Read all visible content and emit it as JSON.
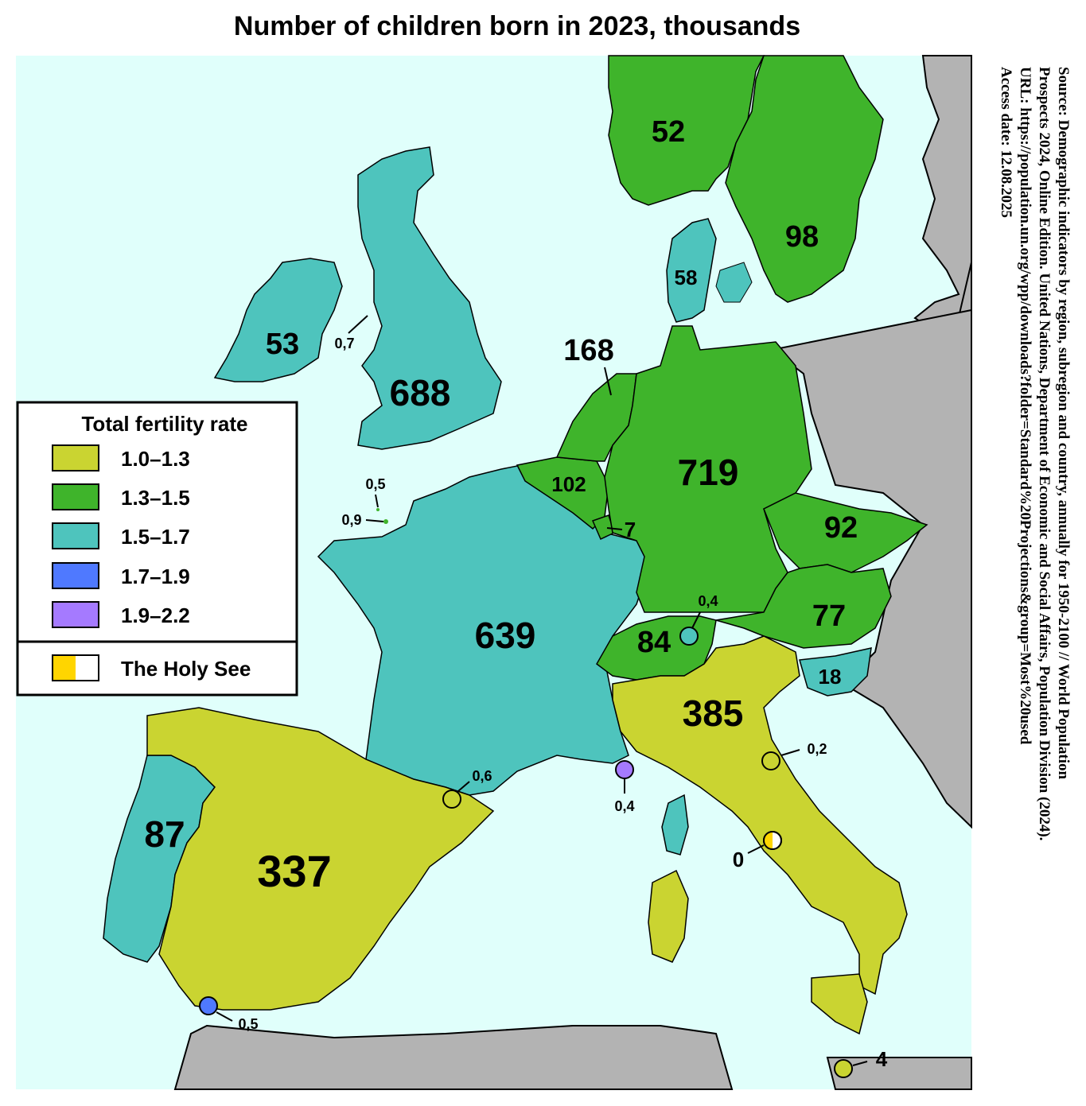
{
  "title": "Number of children born in 2023, thousands",
  "colors": {
    "sea": "#e0fffb",
    "non_europe_land": "#b3b3b3",
    "tfr_1_0_1_3": "#cad431",
    "tfr_1_3_1_5": "#3fb42b",
    "tfr_1_5_1_7": "#4ec4bd",
    "tfr_1_7_1_9": "#4f79ff",
    "tfr_1_9_2_2": "#a57aff",
    "holy_see_yellow": "#ffd500",
    "holy_see_white": "#ffffff"
  },
  "legend": {
    "title": "Total fertility rate",
    "items": [
      {
        "label": "1.0–1.3",
        "color": "#cad431"
      },
      {
        "label": "1.3–1.5",
        "color": "#3fb42b"
      },
      {
        "label": "1.5–1.7",
        "color": "#4ec4bd"
      },
      {
        "label": "1.7–1.9",
        "color": "#4f79ff"
      },
      {
        "label": "1.9–2.2",
        "color": "#a57aff"
      }
    ],
    "holy_see_label": "The Holy See"
  },
  "values": {
    "norway": "52",
    "sweden": "98",
    "denmark": "58",
    "ireland": "53",
    "isle_of_man": "0,7",
    "uk": "688",
    "netherlands": "168",
    "belgium": "102",
    "luxembourg": "7",
    "germany": "719",
    "czechia": "92",
    "austria": "77",
    "liechtenstein": "0,4",
    "switzerland": "84",
    "slovenia": "18",
    "jersey": "0,9",
    "guernsey": "0,5",
    "france": "639",
    "monaco": "0,4",
    "andorra": "0,6",
    "italy": "385",
    "san_marino": "0,2",
    "holy_see": "0",
    "portugal": "87",
    "spain": "337",
    "gibraltar": "0,5",
    "malta": "4"
  },
  "source_lines": [
    "Source: Demographic indicators by region, subregion and country, annually for 1950-2100 // World Population",
    "Prospects 2024, Online Edition. United Nations, Department of Economic and Social Affairs, Population Division (2024).",
    "URL: https://population.un.org/wpp/downloads?folder=Standard%20Projections&group=Most%20used",
    "Access date: 12.08.2025"
  ]
}
